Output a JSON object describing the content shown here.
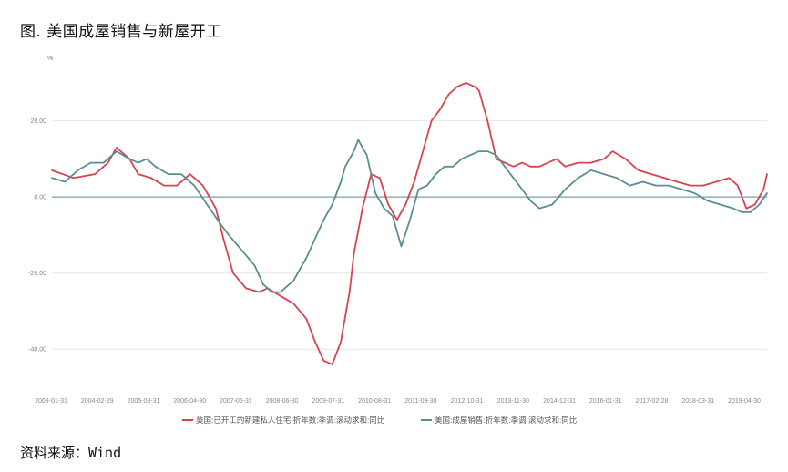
{
  "figure_title": "图.  美国成屋销售与新屋开工",
  "source": "资料来源：Wind",
  "chart_data": {
    "type": "line",
    "unit": "%",
    "ylim": [
      -50,
      35
    ],
    "yticks": [
      20,
      0,
      -20,
      -40
    ],
    "ytick_labels": [
      "20.00",
      "0.00",
      "-20.00",
      "-40.00"
    ],
    "x_tick_labels": [
      "2003-01-31",
      "2004-02-29",
      "2005-03-31",
      "2006-04-30",
      "2007-05-31",
      "2008-06-30",
      "2009-07-31",
      "2010-08-31",
      "2011-09-30",
      "2012-10-31",
      "2013-11-30",
      "2014-12-31",
      "2016-01-31",
      "2017-02-28",
      "2018-03-31",
      "2019-04-30"
    ],
    "x_range": [
      2003.0,
      2019.58
    ],
    "grid": "horizontal",
    "legend_position": "bottom",
    "colors": {
      "starts": "#d9434f",
      "sales": "#5b8e93",
      "zero": "#5b8e93",
      "grid": "#e6e6e6"
    },
    "series": [
      {
        "key": "starts",
        "name": "美国:已开工的新建私人住宅:折年数:季调:滚动求和:同比",
        "x": [
          2003.0,
          2003.5,
          2004.0,
          2004.3,
          2004.5,
          2004.8,
          2005.0,
          2005.3,
          2005.6,
          2005.9,
          2006.2,
          2006.5,
          2006.8,
          2007.0,
          2007.2,
          2007.5,
          2007.8,
          2008.0,
          2008.3,
          2008.6,
          2008.9,
          2009.1,
          2009.3,
          2009.5,
          2009.7,
          2009.9,
          2010.0,
          2010.2,
          2010.4,
          2010.6,
          2010.8,
          2011.0,
          2011.2,
          2011.4,
          2011.6,
          2011.8,
          2012.0,
          2012.2,
          2012.4,
          2012.6,
          2012.8,
          2012.9,
          2013.1,
          2013.3,
          2013.5,
          2013.7,
          2013.9,
          2014.1,
          2014.3,
          2014.5,
          2014.7,
          2014.9,
          2015.2,
          2015.5,
          2015.8,
          2016.0,
          2016.3,
          2016.6,
          2016.9,
          2017.2,
          2017.5,
          2017.8,
          2018.1,
          2018.4,
          2018.7,
          2018.9,
          2019.1,
          2019.3,
          2019.5,
          2019.58
        ],
        "values": [
          7,
          5,
          6,
          9,
          13,
          10,
          6,
          5,
          3,
          3,
          6,
          3,
          -3,
          -12,
          -20,
          -24,
          -25,
          -24,
          -26,
          -28,
          -32,
          -38,
          -43,
          -44,
          -38,
          -25,
          -15,
          -3,
          6,
          5,
          -2,
          -6,
          -2,
          4,
          12,
          20,
          23,
          27,
          29,
          30,
          29,
          28,
          20,
          10,
          9,
          8,
          9,
          8,
          8,
          9,
          10,
          8,
          9,
          9,
          10,
          12,
          10,
          7,
          6,
          5,
          4,
          3,
          3,
          4,
          5,
          3,
          -3,
          -2,
          2,
          6
        ]
      },
      {
        "key": "sales",
        "name": "美国:成屋销售:折年数:季调:滚动求和:同比",
        "x": [
          2003.0,
          2003.3,
          2003.6,
          2003.9,
          2004.2,
          2004.5,
          2004.8,
          2005.0,
          2005.2,
          2005.4,
          2005.7,
          2006.0,
          2006.3,
          2006.6,
          2006.9,
          2007.1,
          2007.4,
          2007.7,
          2007.9,
          2008.1,
          2008.3,
          2008.6,
          2008.9,
          2009.1,
          2009.3,
          2009.5,
          2009.7,
          2009.8,
          2010.0,
          2010.1,
          2010.3,
          2010.5,
          2010.7,
          2010.9,
          2011.1,
          2011.3,
          2011.5,
          2011.7,
          2011.9,
          2012.1,
          2012.3,
          2012.5,
          2012.7,
          2012.9,
          2013.1,
          2013.3,
          2013.5,
          2013.7,
          2013.9,
          2014.1,
          2014.3,
          2014.6,
          2014.9,
          2015.2,
          2015.5,
          2015.8,
          2016.1,
          2016.4,
          2016.7,
          2017.0,
          2017.3,
          2017.6,
          2017.9,
          2018.2,
          2018.5,
          2018.8,
          2019.0,
          2019.2,
          2019.4,
          2019.58
        ],
        "values": [
          5,
          4,
          7,
          9,
          9,
          12,
          10,
          9,
          10,
          8,
          6,
          6,
          3,
          -2,
          -7,
          -10,
          -14,
          -18,
          -23,
          -25,
          -25,
          -22,
          -16,
          -11,
          -6,
          -2,
          4,
          8,
          12,
          15,
          11,
          1,
          -3,
          -5,
          -13,
          -6,
          2,
          3,
          6,
          8,
          8,
          10,
          11,
          12,
          12,
          11,
          8,
          5,
          2,
          -1,
          -3,
          -2,
          2,
          5,
          7,
          6,
          5,
          3,
          4,
          3,
          3,
          2,
          1,
          -1,
          -2,
          -3,
          -4,
          -4,
          -2,
          1
        ]
      }
    ]
  }
}
